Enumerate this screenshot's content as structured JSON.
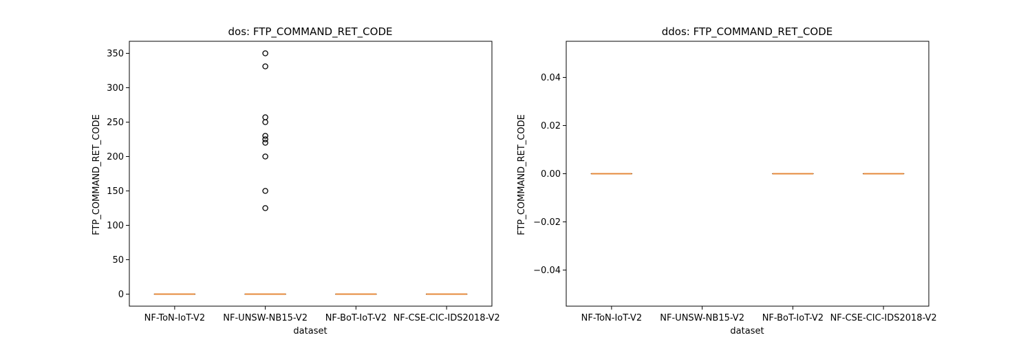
{
  "chart_data": [
    {
      "type": "box",
      "title": "dos: FTP_COMMAND_RET_CODE",
      "xlabel": "dataset",
      "ylabel": "FTP_COMMAND_RET_CODE",
      "categories": [
        "NF-ToN-IoT-V2",
        "NF-UNSW-NB15-V2",
        "NF-BoT-IoT-V2",
        "NF-CSE-CIC-IDS2018-V2"
      ],
      "ylim": [
        -17.5,
        367.5
      ],
      "yticks": [
        0,
        50,
        100,
        150,
        200,
        250,
        300,
        350
      ],
      "ytick_labels": [
        "0",
        "50",
        "100",
        "150",
        "200",
        "250",
        "300",
        "350"
      ],
      "boxes": [
        {
          "category": "NF-ToN-IoT-V2",
          "min": 0,
          "q1": 0,
          "median": 0,
          "q3": 0,
          "max": 0,
          "outliers": []
        },
        {
          "category": "NF-UNSW-NB15-V2",
          "min": 0,
          "q1": 0,
          "median": 0,
          "q3": 0,
          "max": 0,
          "outliers": [
            125,
            150,
            200,
            220,
            225,
            230,
            250,
            257,
            331,
            350
          ]
        },
        {
          "category": "NF-BoT-IoT-V2",
          "min": 0,
          "q1": 0,
          "median": 0,
          "q3": 0,
          "max": 0,
          "outliers": []
        },
        {
          "category": "NF-CSE-CIC-IDS2018-V2",
          "min": 0,
          "q1": 0,
          "median": 0,
          "q3": 0,
          "max": 0,
          "outliers": []
        }
      ]
    },
    {
      "type": "box",
      "title": "ddos: FTP_COMMAND_RET_CODE",
      "xlabel": "dataset",
      "ylabel": "FTP_COMMAND_RET_CODE",
      "categories": [
        "NF-ToN-IoT-V2",
        "NF-UNSW-NB15-V2",
        "NF-BoT-IoT-V2",
        "NF-CSE-CIC-IDS2018-V2"
      ],
      "ylim": [
        -0.055,
        0.055
      ],
      "yticks": [
        -0.04,
        -0.02,
        0.0,
        0.02,
        0.04
      ],
      "ytick_labels": [
        "−0.04",
        "−0.02",
        "0.00",
        "0.02",
        "0.04"
      ],
      "boxes": [
        {
          "category": "NF-ToN-IoT-V2",
          "min": 0,
          "q1": 0,
          "median": 0,
          "q3": 0,
          "max": 0,
          "outliers": []
        },
        {
          "category": "NF-UNSW-NB15-V2",
          "empty": true,
          "outliers": []
        },
        {
          "category": "NF-BoT-IoT-V2",
          "min": 0,
          "q1": 0,
          "median": 0,
          "q3": 0,
          "max": 0,
          "outliers": []
        },
        {
          "category": "NF-CSE-CIC-IDS2018-V2",
          "min": 0,
          "q1": 0,
          "median": 0,
          "q3": 0,
          "max": 0,
          "outliers": []
        }
      ]
    }
  ],
  "colors": {
    "median": "#e5883a",
    "box_edge": "#000000",
    "axes": "#000000",
    "background": "#ffffff"
  }
}
